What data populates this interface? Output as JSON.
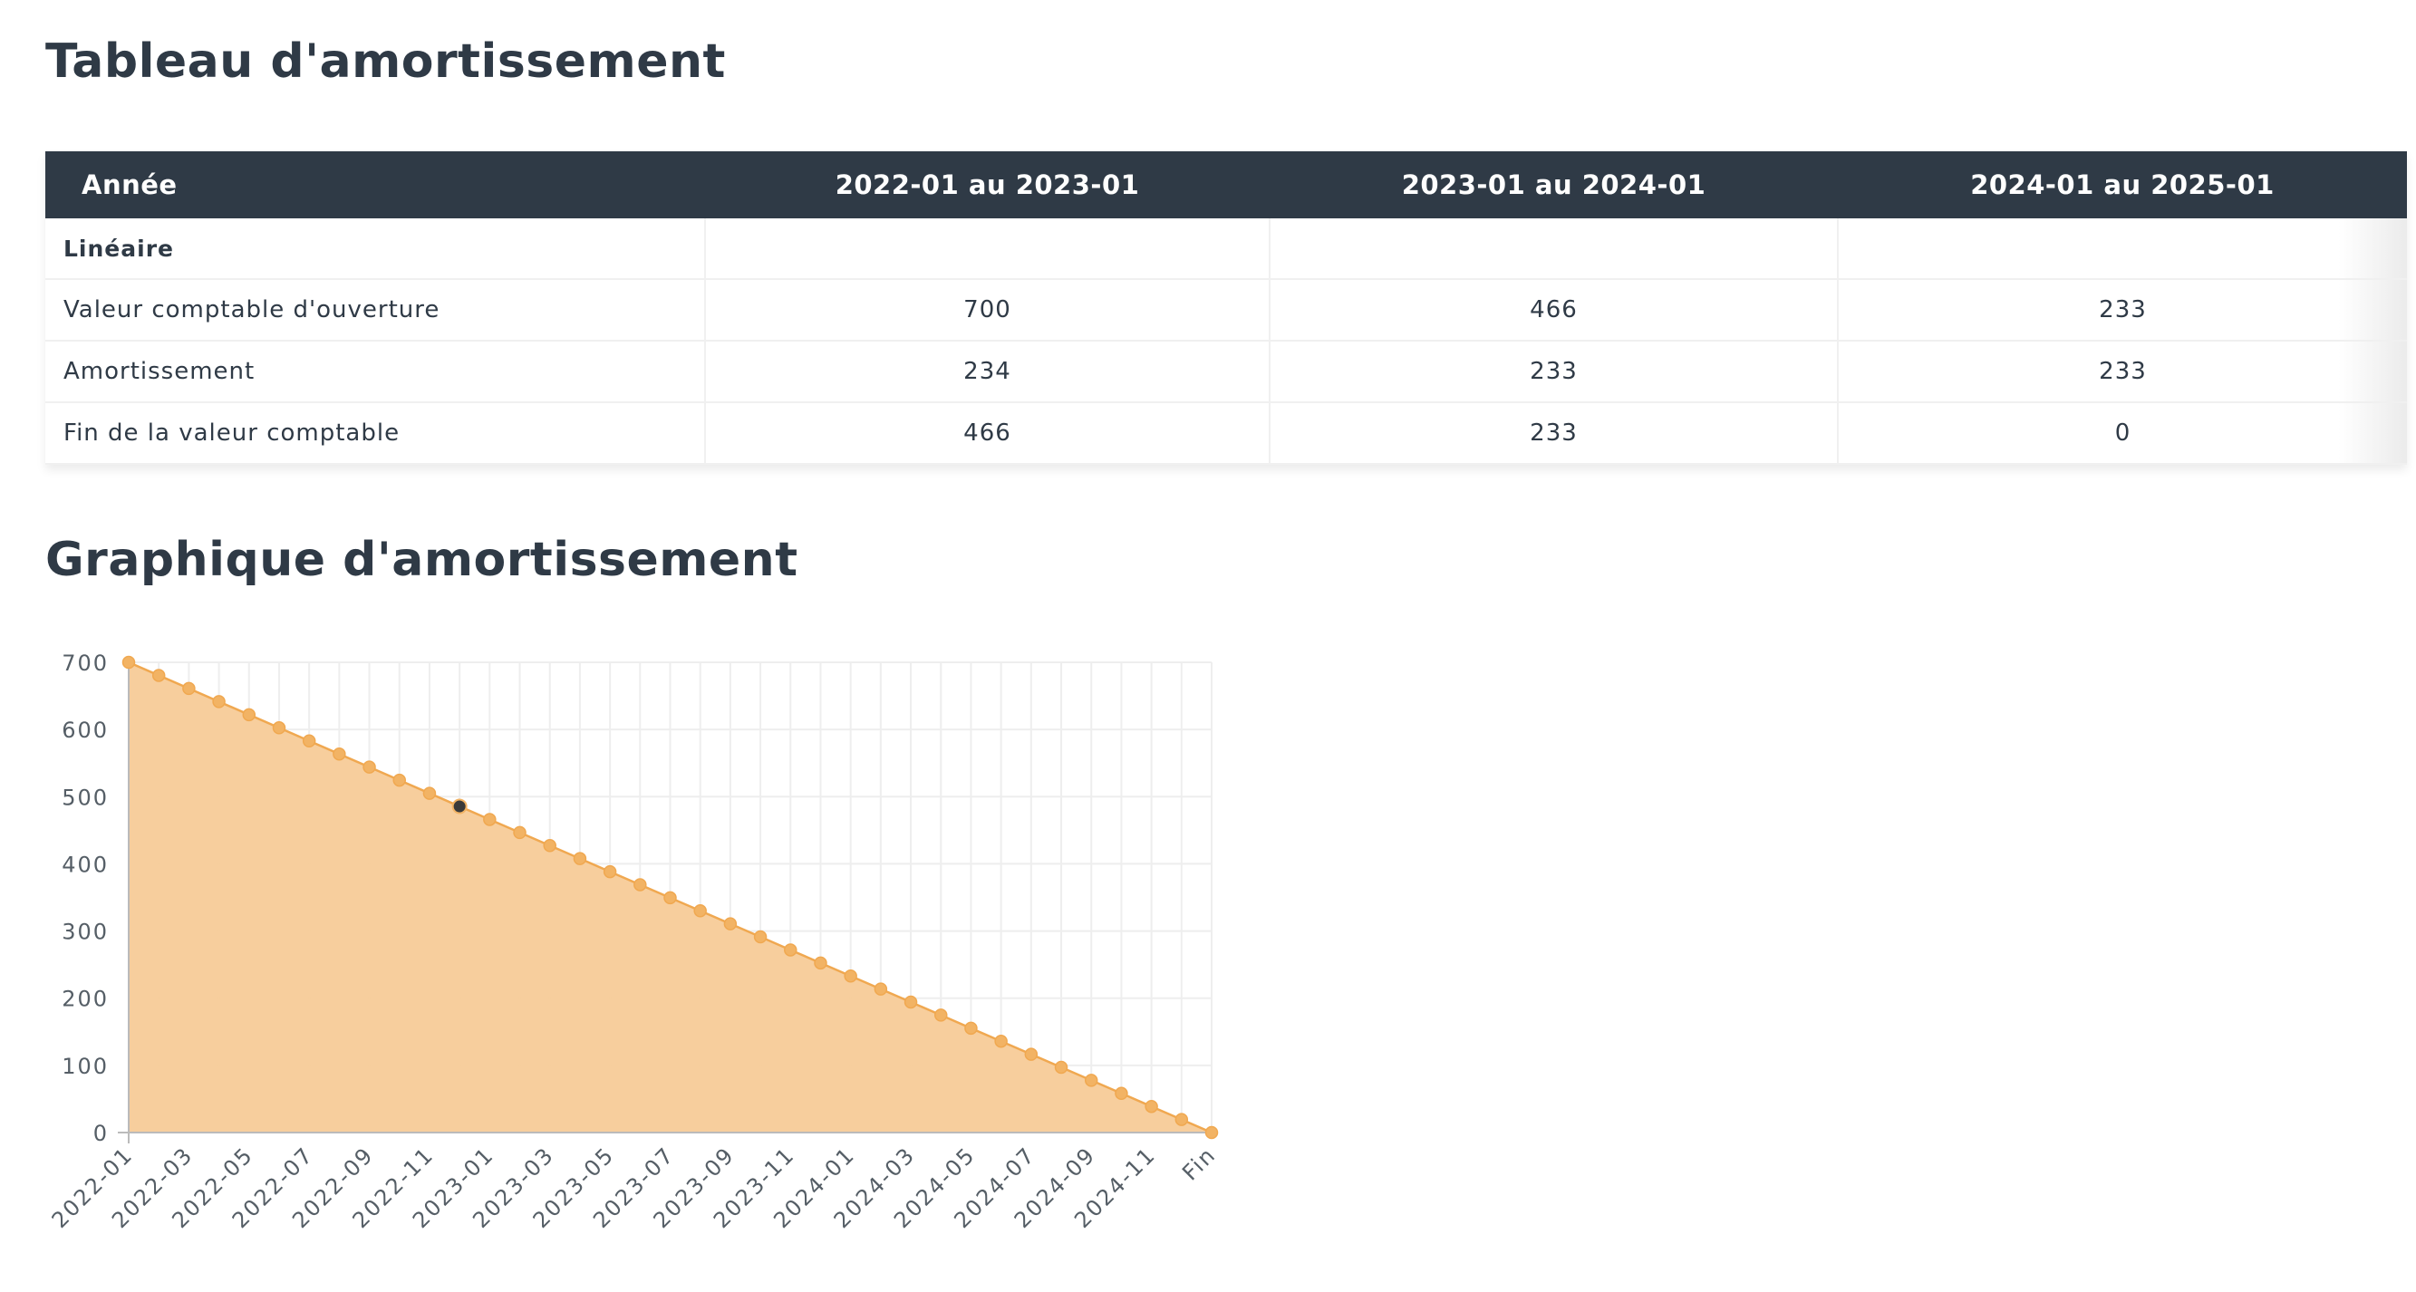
{
  "table_title": "Tableau d'amortissement",
  "chart_title": "Graphique d'amortissement",
  "table": {
    "headers": [
      "Année",
      "2022-01 au 2023-01",
      "2023-01 au 2024-01",
      "2024-01 au 2025-01"
    ],
    "section_label": "Linéaire",
    "rows": [
      {
        "label": "Valeur comptable d'ouverture",
        "values": [
          "700",
          "466",
          "233"
        ]
      },
      {
        "label": "Amortissement",
        "values": [
          "234",
          "233",
          "233"
        ]
      },
      {
        "label": "Fin de la valeur comptable",
        "values": [
          "466",
          "233",
          "0"
        ]
      }
    ]
  },
  "colors": {
    "header_bg": "#2f3a46",
    "area_fill": "#f7cb98",
    "line": "#f0a850",
    "point": "#f2b364",
    "highlight_point": "#3a3a3a",
    "grid": "#eeeeee"
  },
  "chart_data": {
    "type": "area",
    "title": "",
    "xlabel": "",
    "ylabel": "",
    "ylim": [
      0,
      700
    ],
    "yticks": [
      0,
      100,
      200,
      300,
      400,
      500,
      600,
      700
    ],
    "grid": true,
    "legend": "none",
    "x": [
      "2022-01",
      "2022-02",
      "2022-03",
      "2022-04",
      "2022-05",
      "2022-06",
      "2022-07",
      "2022-08",
      "2022-09",
      "2022-10",
      "2022-11",
      "2022-12",
      "2023-01",
      "2023-02",
      "2023-03",
      "2023-04",
      "2023-05",
      "2023-06",
      "2023-07",
      "2023-08",
      "2023-09",
      "2023-10",
      "2023-11",
      "2023-12",
      "2024-01",
      "2024-02",
      "2024-03",
      "2024-04",
      "2024-05",
      "2024-06",
      "2024-07",
      "2024-08",
      "2024-09",
      "2024-10",
      "2024-11",
      "2024-12",
      "Fin"
    ],
    "xtick_labels": [
      "2022-01",
      "2022-03",
      "2022-05",
      "2022-07",
      "2022-09",
      "2022-11",
      "2023-01",
      "2023-03",
      "2023-05",
      "2023-07",
      "2023-09",
      "2023-11",
      "2024-01",
      "2024-03",
      "2024-05",
      "2024-07",
      "2024-09",
      "2024-11",
      "Fin"
    ],
    "series": [
      {
        "name": "",
        "values": [
          700,
          680.5,
          661,
          641.5,
          622,
          602.5,
          583,
          563.5,
          544,
          524.5,
          505,
          485.5,
          466,
          446.6,
          427.2,
          407.8,
          388.3,
          368.9,
          349.5,
          330.1,
          310.7,
          291.3,
          271.8,
          252.4,
          233,
          213.6,
          194.2,
          174.8,
          155.3,
          135.9,
          116.5,
          97.1,
          77.7,
          58.3,
          38.8,
          19.4,
          0
        ]
      }
    ],
    "highlight_index": 11
  }
}
